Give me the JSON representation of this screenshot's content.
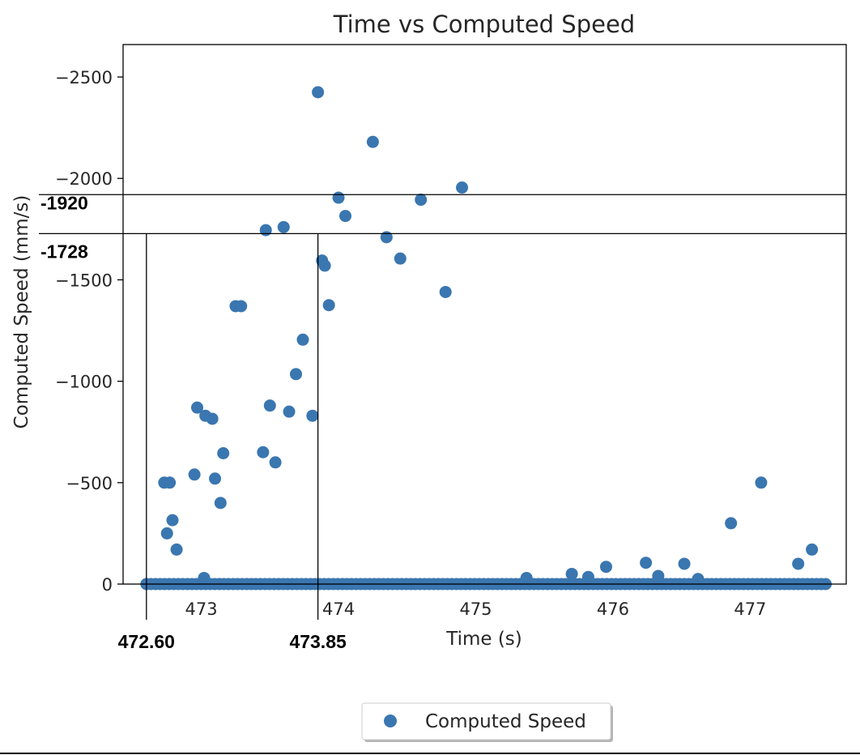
{
  "chart_data": {
    "type": "scatter",
    "title": "Time vs Computed Speed",
    "xlabel": "Time (s)",
    "ylabel": "Computed Speed (mm/s)",
    "xlim": [
      472.43,
      477.7
    ],
    "ylim": [
      0,
      -2660
    ],
    "y_inverted": true,
    "x_ticks": [
      473,
      474,
      475,
      476,
      477
    ],
    "x_tick_labels": [
      "473",
      "474",
      "475",
      "476",
      "477"
    ],
    "y_ticks": [
      0,
      -500,
      -1000,
      -1500,
      -2000,
      -2500
    ],
    "y_tick_labels": [
      "0",
      "−500",
      "−1000",
      "−1500",
      "−2000",
      "−2500"
    ],
    "grid": false,
    "legend_position": "bottom-center",
    "series": [
      {
        "name": "Computed Speed",
        "color": "#3a76b0",
        "x": [
          472.73,
          472.75,
          472.77,
          472.79,
          472.82,
          472.95,
          473.1,
          473.14,
          473.25,
          473.45,
          473.5,
          473.54,
          473.64,
          473.69,
          473.81,
          472.97,
          473.03,
          473.08,
          473.16,
          473.29,
          473.47,
          473.6,
          473.74,
          473.85,
          473.88,
          473.9,
          473.93,
          474.0,
          474.05,
          474.25,
          474.35,
          474.45,
          474.6,
          474.78,
          474.9,
          473.02,
          475.37,
          475.7,
          475.82,
          475.95,
          476.24,
          476.33,
          476.52,
          476.62,
          476.86,
          477.08,
          477.35,
          477.45
        ],
        "y": [
          -500,
          -250,
          -500,
          -315,
          -170,
          -540,
          -520,
          -400,
          -1370,
          -650,
          -880,
          -600,
          -850,
          -1035,
          -830,
          -870,
          -830,
          -815,
          -645,
          -1370,
          -1745,
          -1760,
          -1205,
          -2425,
          -1595,
          -1570,
          -1375,
          -1905,
          -1815,
          -2180,
          -1710,
          -1605,
          -1895,
          -1440,
          -1955,
          -30,
          -30,
          -50,
          -35,
          -85,
          -105,
          -40,
          -100,
          -25,
          -300,
          -500,
          -100,
          -170
        ]
      }
    ],
    "baseline_points": {
      "y": 0,
      "x_start": 472.6,
      "x_end": 477.55,
      "count": 150
    },
    "annotations": {
      "horizontal_lines": [
        {
          "y": -1920,
          "label": "-1920"
        },
        {
          "y": -1728,
          "label": "-1728"
        }
      ],
      "vertical_lines": [
        {
          "x": 472.6,
          "label": "472.60"
        },
        {
          "x": 473.85,
          "label": "473.85"
        }
      ]
    },
    "legend": [
      {
        "label": "Computed Speed",
        "color": "#3a76b0"
      }
    ]
  }
}
